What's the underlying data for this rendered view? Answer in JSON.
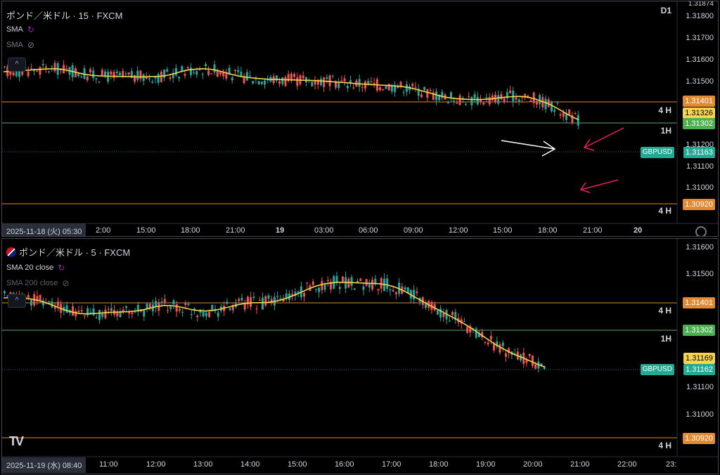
{
  "colors": {
    "up": "#26a69a",
    "down": "#ef5350",
    "sma": "#f5d44e",
    "line_orange": "#e28a32",
    "line_green": "#5fa86b",
    "line_teal": "#2b6c73"
  },
  "pane1": {
    "title": "ポンド／米ドル · 15 · FXCM",
    "indicators": [
      {
        "label": "SMA"
      },
      {
        "label": "SMA"
      }
    ],
    "collapse_label": "^",
    "tf_tags": {
      "d1": "D1",
      "h4a": "4 H",
      "h1": "1H",
      "h4b": "4 H"
    },
    "price_axis": [
      "1.31800",
      "1.31700",
      "1.31600",
      "1.31500",
      "1.31200",
      "1.31100",
      "1.31000"
    ],
    "price_axis_top_partial": "1.31874",
    "tags": {
      "t1": "1.31401",
      "t2": "1.31326",
      "t3": "1.31302",
      "t4": "1.31163",
      "t5": "1.30920"
    },
    "symbol_tag": "GBPUSD",
    "date_label": "2025-11-18 (火)  05:30",
    "time_axis": [
      "2:00",
      "15:00",
      "18:00",
      "21:00",
      "19",
      "03:00",
      "06:00",
      "09:00",
      "12:00",
      "15:00",
      "18:00",
      "21:00",
      "20"
    ],
    "sma_levels": [
      1.31544,
      1.31546,
      1.31548,
      1.3155,
      1.31553,
      1.31555,
      1.31557,
      1.31558,
      1.31555,
      1.31548,
      1.3154,
      1.31532,
      1.31527,
      1.31525,
      1.31523,
      1.31523,
      1.31522,
      1.31521,
      1.3152,
      1.3152,
      1.31521,
      1.31522,
      1.31526,
      1.31534,
      1.31544,
      1.31552,
      1.31556,
      1.31558,
      1.31556,
      1.3155,
      1.31541,
      1.31531,
      1.31523,
      1.31518,
      1.31514,
      1.31511,
      1.31509,
      1.31508,
      1.31507,
      1.31506,
      1.31505,
      1.31504,
      1.31503,
      1.31501,
      1.31499,
      1.31496,
      1.31494,
      1.31491,
      1.31488,
      1.31486,
      1.31484,
      1.31482,
      1.3148,
      1.31478,
      1.31475,
      1.3147,
      1.31462,
      1.31452,
      1.31443,
      1.31433,
      1.31425,
      1.3142,
      1.31417,
      1.31415,
      1.31414,
      1.31415,
      1.31417,
      1.31421,
      1.31425,
      1.31428,
      1.31429,
      1.31426,
      1.31418,
      1.31406,
      1.31393,
      1.31375,
      1.31355,
      1.31335,
      1.3132
    ]
  },
  "pane2": {
    "title": "ポンド／米ドル · 5 · FXCM",
    "indicators": [
      {
        "label": "SMA 20 close"
      },
      {
        "label": "SMA 200 close"
      }
    ],
    "collapse_label": "^",
    "tf_tags": {
      "h4a": "4 H",
      "h1": "1H",
      "h4b": "4 H"
    },
    "price_axis": [
      "1.31600",
      "1.31500",
      "1.31100",
      "1.31000",
      "1.30920"
    ],
    "tags": {
      "t1": "1.31401",
      "t3": "1.31302",
      "t2": "1.31169",
      "t4": "1.31162",
      "t5": "1.30920"
    },
    "symbol_tag": "GBPUSD",
    "date_label": "2025-11-19 (水)  08:40",
    "time_axis": [
      "11:00",
      "12:00",
      "13:00",
      "14:00",
      "15:00",
      "16:00",
      "17:00",
      "18:00",
      "19:00",
      "20:00",
      "21:00",
      "22:00",
      "23:"
    ],
    "sma_levels": [
      1.31419,
      1.3142,
      1.3142,
      1.31418,
      1.31415,
      1.3141,
      1.31403,
      1.31394,
      1.31384,
      1.31375,
      1.31368,
      1.31363,
      1.31362,
      1.31363,
      1.31365,
      1.31367,
      1.31368,
      1.31369,
      1.3137,
      1.31372,
      1.31376,
      1.31382,
      1.31388,
      1.31392,
      1.31392,
      1.31389,
      1.31384,
      1.31378,
      1.31374,
      1.31372,
      1.31374,
      1.31378,
      1.31384,
      1.3139,
      1.31396,
      1.314,
      1.31402,
      1.31402,
      1.31403,
      1.31406,
      1.31412,
      1.3142,
      1.3143,
      1.31441,
      1.31452,
      1.31461,
      1.31468,
      1.31472,
      1.31475,
      1.31475,
      1.31474,
      1.31473,
      1.31472,
      1.31471,
      1.3147,
      1.31467,
      1.31461,
      1.31452,
      1.3144,
      1.31426,
      1.31412,
      1.31398,
      1.31385,
      1.31372,
      1.31359,
      1.31346,
      1.31332,
      1.31317,
      1.31301,
      1.31284,
      1.31267,
      1.31251,
      1.31237,
      1.31224,
      1.31213,
      1.31203,
      1.31192,
      1.31181,
      1.31172
    ]
  }
}
